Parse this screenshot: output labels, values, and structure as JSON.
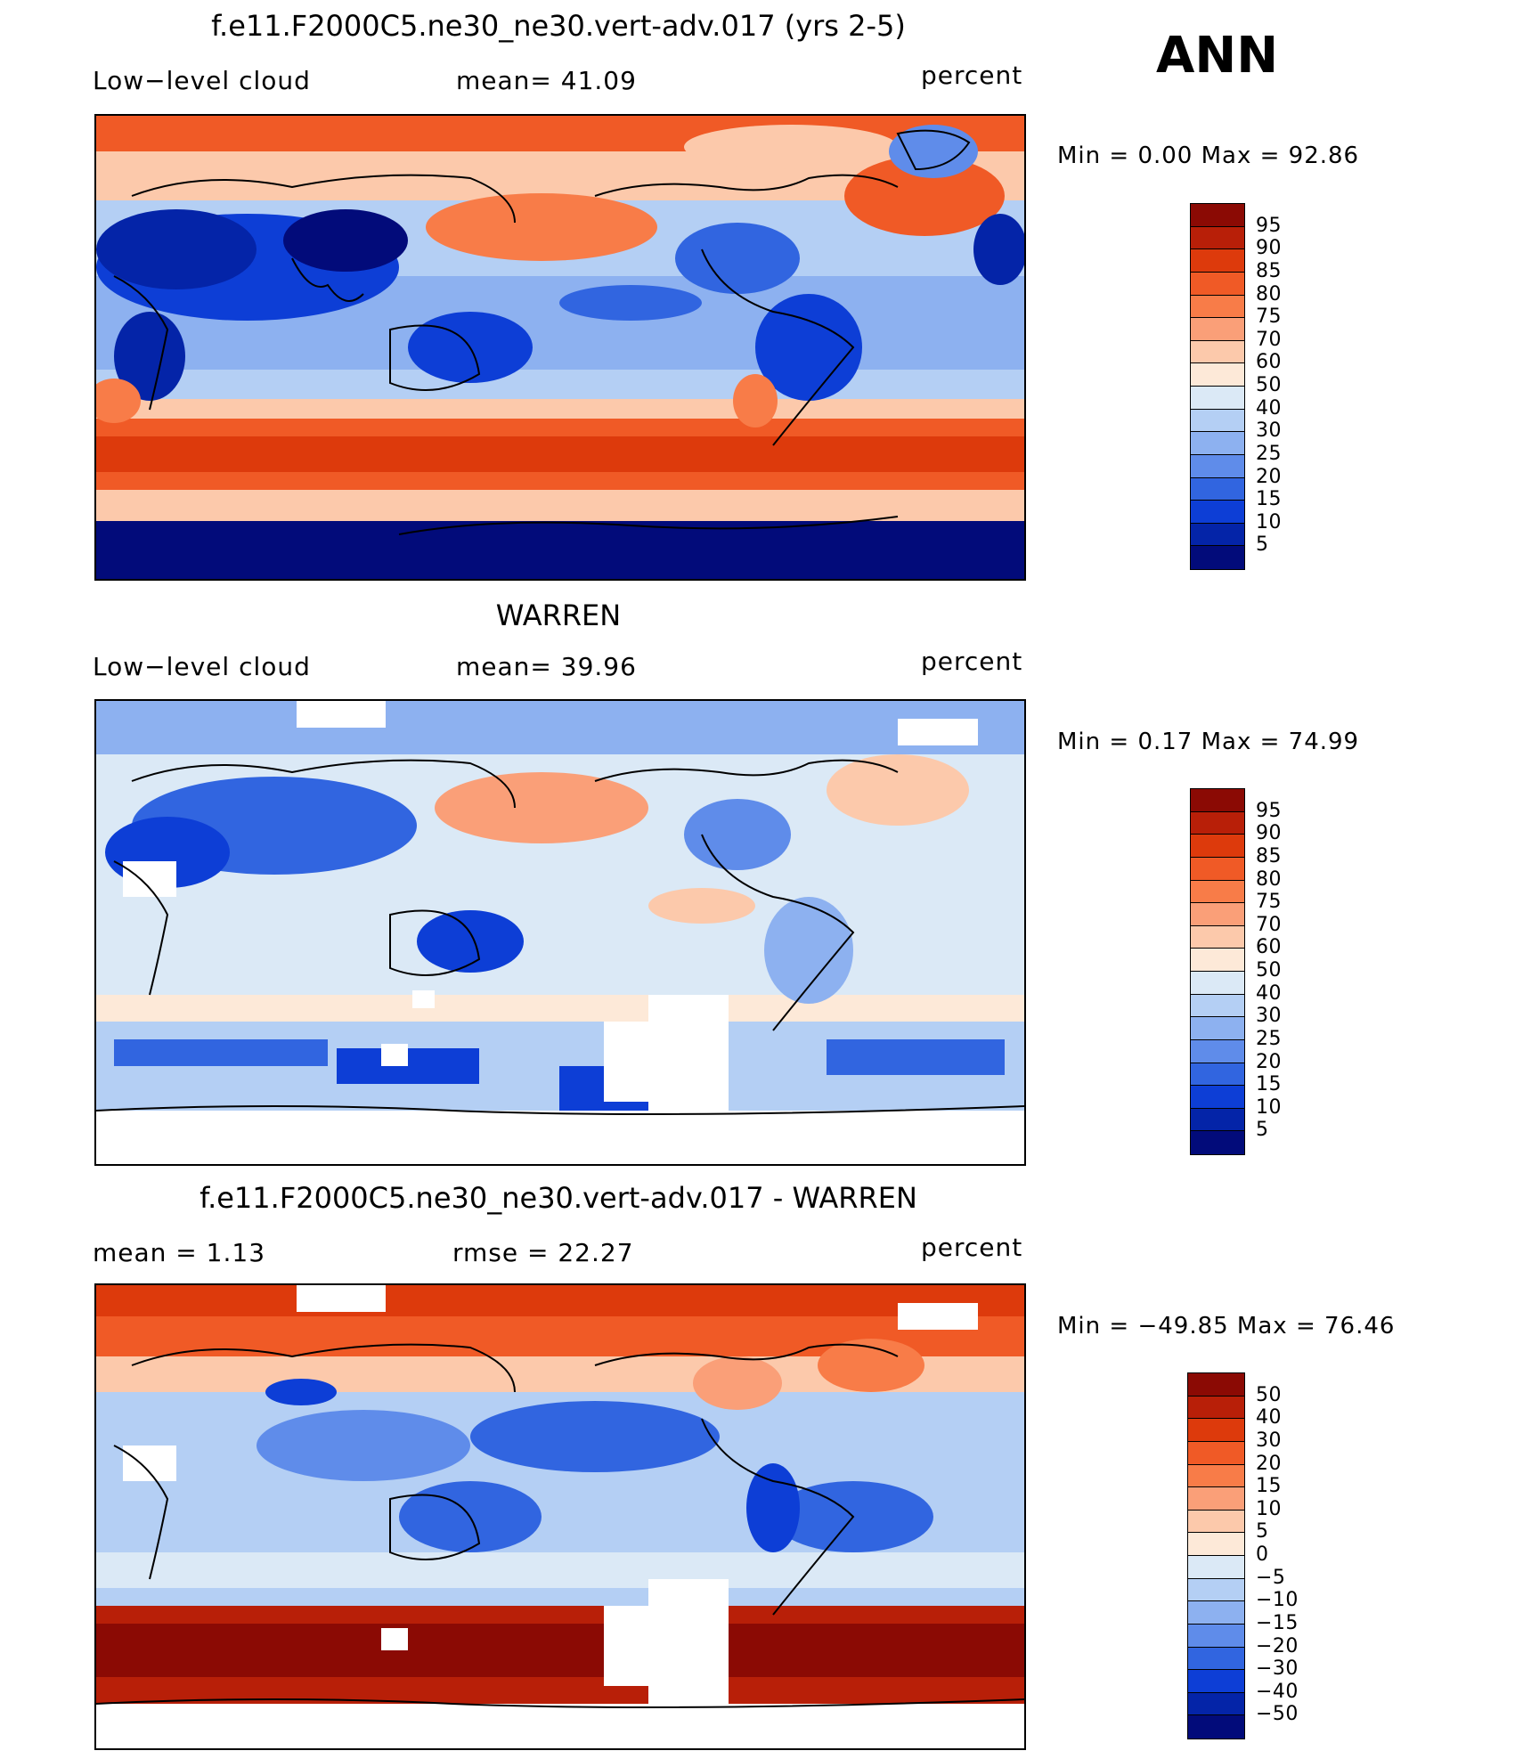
{
  "season": "ANN",
  "panels": [
    {
      "title": "f.e11.F2000C5.ne30_ne30.vert-adv.017 (yrs 2-5)",
      "left_label": "Low−level cloud",
      "mid_label": "mean=   41.09",
      "units": "percent",
      "minmax": "Min =     0.00  Max =    92.86",
      "colorbar": {
        "labels": [
          "95",
          "90",
          "85",
          "80",
          "75",
          "70",
          "60",
          "50",
          "40",
          "30",
          "25",
          "20",
          "15",
          "10",
          "5"
        ],
        "colors": [
          "#8b0a04",
          "#b81f08",
          "#dd3a0c",
          "#f05a26",
          "#f87c48",
          "#fa9f78",
          "#fcc9ab",
          "#fde9d8",
          "#dbe9f6",
          "#b4cff4",
          "#8db1f0",
          "#5f8cea",
          "#3165e0",
          "#0d3ed6",
          "#0424a8",
          "#020b7a"
        ]
      }
    },
    {
      "title": "WARREN",
      "left_label": "Low−level cloud",
      "mid_label": "mean=   39.96",
      "units": "percent",
      "minmax": "Min =     0.17  Max =    74.99",
      "colorbar": {
        "labels": [
          "95",
          "90",
          "85",
          "80",
          "75",
          "70",
          "60",
          "50",
          "40",
          "30",
          "25",
          "20",
          "15",
          "10",
          "5"
        ],
        "colors": [
          "#8b0a04",
          "#b81f08",
          "#dd3a0c",
          "#f05a26",
          "#f87c48",
          "#fa9f78",
          "#fcc9ab",
          "#fde9d8",
          "#dbe9f6",
          "#b4cff4",
          "#8db1f0",
          "#5f8cea",
          "#3165e0",
          "#0d3ed6",
          "#0424a8",
          "#020b7a"
        ]
      }
    },
    {
      "title": "f.e11.F2000C5.ne30_ne30.vert-adv.017 - WARREN",
      "left_label": "mean =     1.13",
      "mid_label": "rmse =    22.27",
      "units": "percent",
      "minmax": "Min = −49.85  Max =    76.46",
      "colorbar": {
        "labels": [
          "50",
          "40",
          "30",
          "20",
          "15",
          "10",
          "5",
          "0",
          "−5",
          "−10",
          "−15",
          "−20",
          "−30",
          "−40",
          "−50"
        ],
        "colors": [
          "#8b0a04",
          "#b81f08",
          "#dd3a0c",
          "#f05a26",
          "#f87c48",
          "#fa9f78",
          "#fcc9ab",
          "#fde9d8",
          "#dbe9f6",
          "#b4cff4",
          "#8db1f0",
          "#5f8cea",
          "#3165e0",
          "#0d3ed6",
          "#0424a8",
          "#020b7a"
        ]
      }
    }
  ]
}
